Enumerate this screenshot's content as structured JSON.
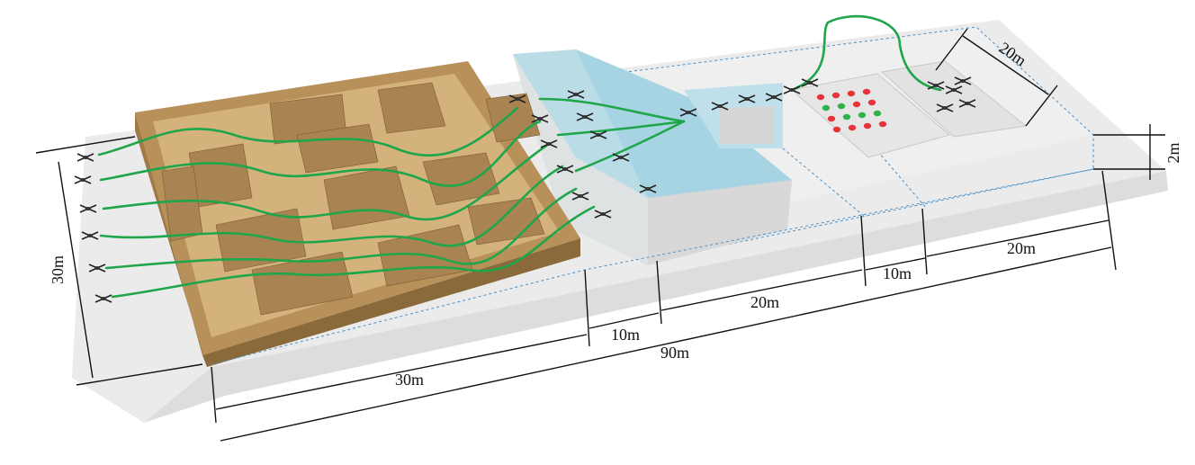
{
  "dimensions": {
    "width_total": "90m",
    "depth": "30m",
    "maze_length": "30m",
    "gap_1": "10m",
    "building_length": "20m",
    "gap_2": "10m",
    "target_zone_length": "20m",
    "landing_pad_width": "20m",
    "height": "2m"
  },
  "colors": {
    "ground": "#dcdcdc",
    "maze_wood": "#c9a46a",
    "maze_wood_dark": "#8a6a3a",
    "building_glass": "#a8d8e6",
    "path_green": "#1fa64a",
    "dot_red": "#e8323a",
    "dot_green": "#2db34a",
    "pad": "#e9e9e9"
  },
  "target_grid": {
    "rows": [
      [
        "red",
        "red",
        "red",
        "red"
      ],
      [
        "green",
        "green",
        "red",
        "red"
      ],
      [
        "red",
        "green",
        "green",
        "green"
      ],
      [
        "red",
        "red",
        "red",
        "red"
      ]
    ]
  },
  "icons": {
    "drone": "quadrotor-drone-icon"
  }
}
